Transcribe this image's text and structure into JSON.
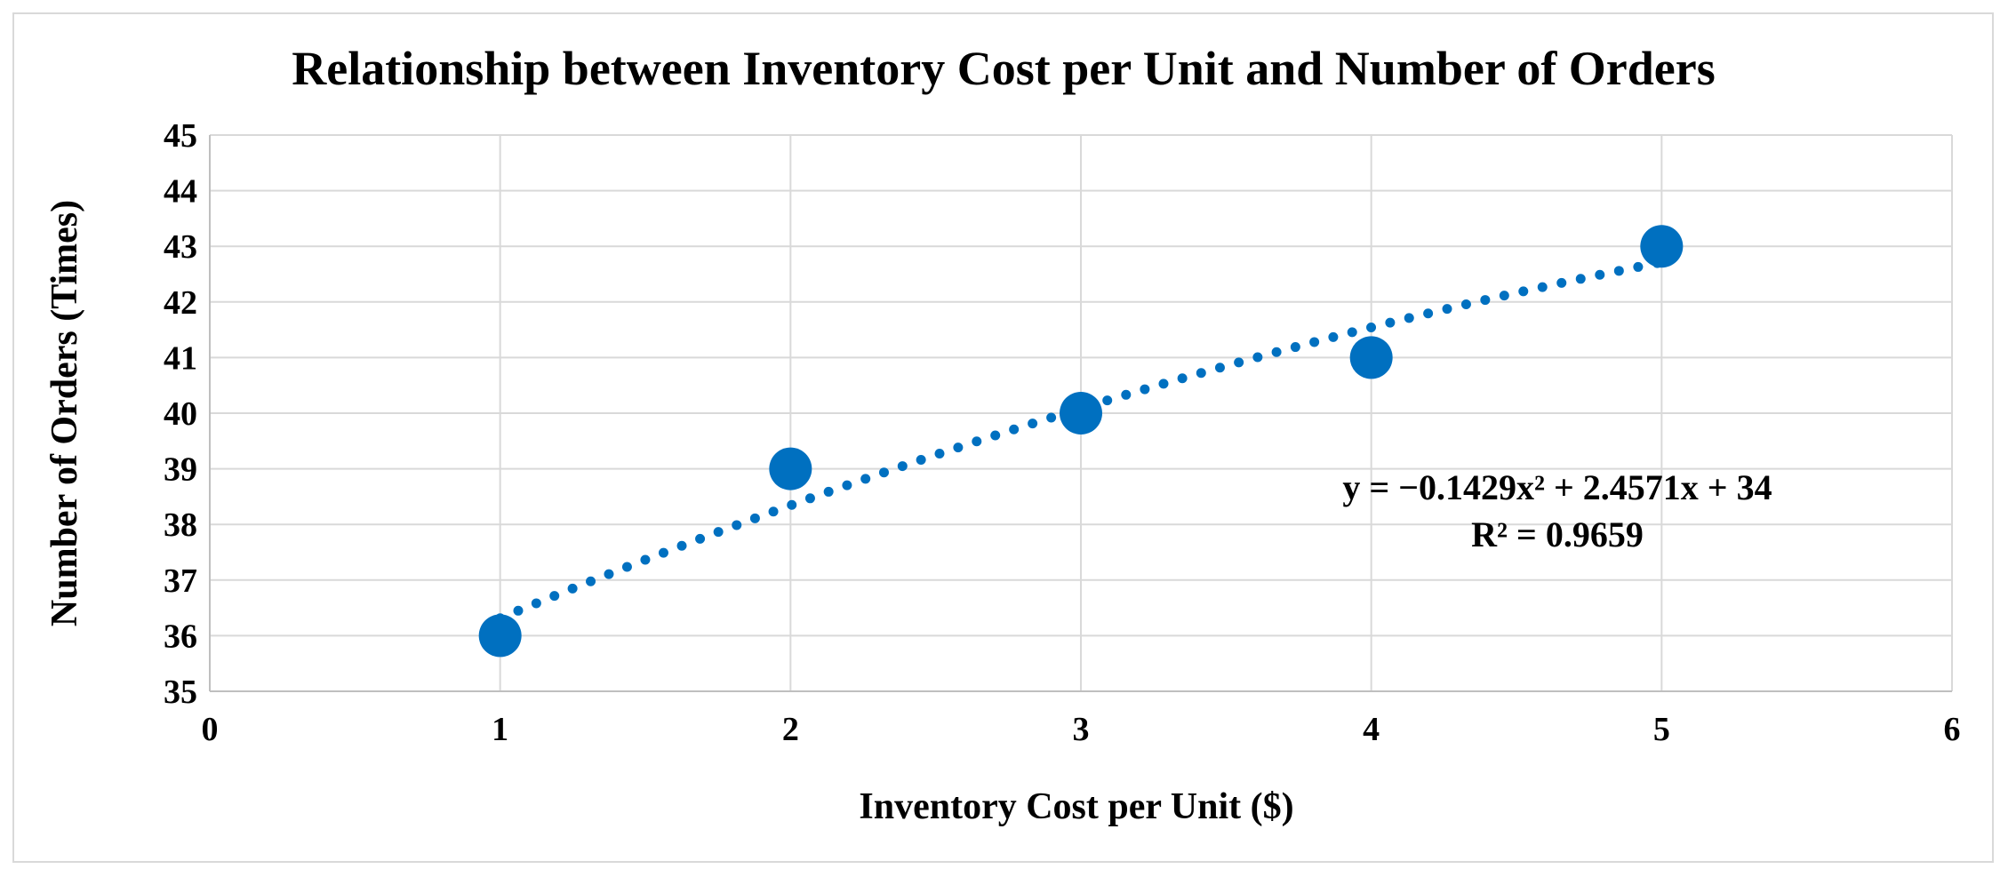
{
  "chart_data": {
    "type": "scatter",
    "title": "Relationship between Inventory Cost per Unit and Number of Orders",
    "xlabel": "Inventory Cost per Unit ($)",
    "ylabel": "Number of Orders (Times)",
    "xlim": [
      0,
      6
    ],
    "ylim": [
      35,
      45
    ],
    "x_ticks": [
      0,
      1,
      2,
      3,
      4,
      5,
      6
    ],
    "y_ticks": [
      35,
      36,
      37,
      38,
      39,
      40,
      41,
      42,
      43,
      44,
      45
    ],
    "grid": true,
    "series": [
      {
        "x": [
          1,
          2,
          3,
          4,
          5
        ],
        "y": [
          36,
          39,
          40,
          41,
          43
        ],
        "color": "#0070C0"
      }
    ],
    "trendline": {
      "type": "polynomial",
      "order": 2,
      "coefficients": [
        -0.1429,
        2.4571,
        34
      ],
      "x_range": [
        1,
        5
      ],
      "style": "dotted",
      "color": "#0070C0"
    },
    "annotations": {
      "equation": "y = −0.1429x² + 2.4571x + 34",
      "r_squared": "R² = 0.9659"
    }
  }
}
